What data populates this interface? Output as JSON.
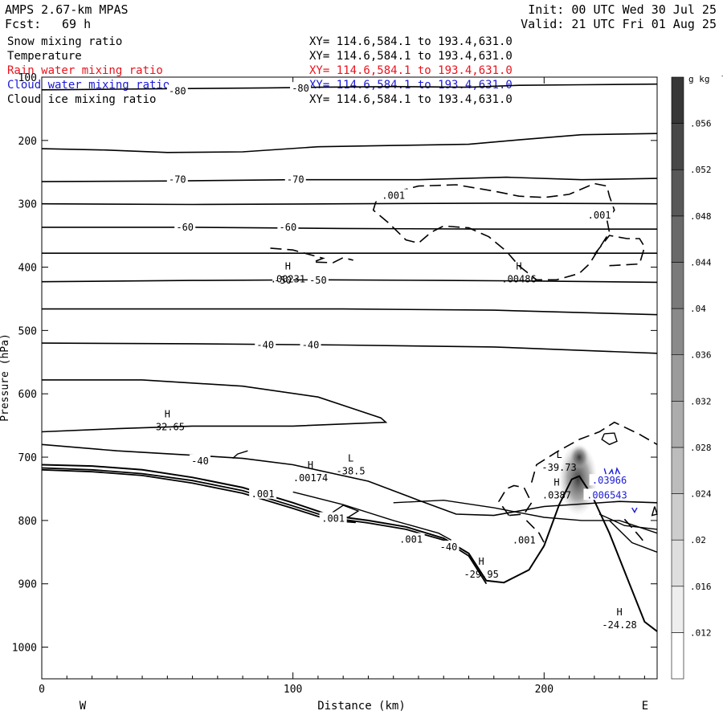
{
  "header": {
    "model": "AMPS 2.67-km MPAS",
    "fcst_label": "Fcst:",
    "fcst_value": "69 h",
    "init": "Init: 00 UTC Wed 30 Jul 25",
    "valid": "Valid: 21 UTC Fri 01 Aug 25"
  },
  "fields": [
    {
      "name": "Snow mixing ratio",
      "xy": "XY= 114.6,584.1 to 193.4,631.0",
      "color": "#000000"
    },
    {
      "name": "Temperature",
      "xy": "XY= 114.6,584.1 to 193.4,631.0",
      "color": "#000000"
    },
    {
      "name": "Rain water mixing ratio",
      "xy": "XY= 114.6,584.1 to 193.4,631.0",
      "color": "#e8141e"
    },
    {
      "name": "Cloud water mixing ratio",
      "xy": "XY= 114.6,584.1 to 193.4,631.0",
      "color": "#1a1ad8"
    },
    {
      "name": "Cloud ice mixing ratio",
      "xy": "XY= 114.6,584.1 to 193.4,631.0",
      "color": "#000000"
    }
  ],
  "chart_data": {
    "type": "cross-section contour",
    "xlabel": "Distance (km)",
    "ylabel": "Pressure (hPa)",
    "xlim": [
      0,
      245
    ],
    "ylim": [
      100,
      1050
    ],
    "y_log": false,
    "x_ticks": [
      0,
      100,
      200
    ],
    "y_ticks": [
      100,
      200,
      300,
      400,
      500,
      600,
      700,
      800,
      900,
      1000
    ],
    "direction_labels": {
      "left": "W",
      "right": "E"
    },
    "colorbar": {
      "unit": "g kg",
      "unit_exp": "-1",
      "levels": [
        ".012",
        ".016",
        ".02",
        ".024",
        ".028",
        ".032",
        ".036",
        ".04",
        ".044",
        ".048",
        ".052",
        ".056"
      ]
    },
    "temperature_contours": [
      {
        "level": -80,
        "points": [
          [
            0,
            120
          ],
          [
            30,
            119
          ],
          [
            60,
            118
          ],
          [
            90,
            117
          ],
          [
            110,
            116
          ],
          [
            140,
            115
          ],
          [
            170,
            116
          ],
          [
            190,
            113
          ],
          [
            215,
            112
          ],
          [
            245,
            111
          ]
        ]
      },
      {
        "level": -80,
        "points": [
          [
            0,
            213
          ],
          [
            25,
            215
          ],
          [
            50,
            219
          ],
          [
            80,
            218
          ],
          [
            110,
            210
          ],
          [
            140,
            208
          ],
          [
            170,
            206
          ],
          [
            190,
            199
          ],
          [
            215,
            191
          ],
          [
            245,
            189
          ]
        ]
      },
      {
        "level": -70,
        "points": [
          [
            0,
            265
          ],
          [
            50,
            264
          ],
          [
            100,
            262
          ],
          [
            150,
            262
          ],
          [
            185,
            258
          ],
          [
            215,
            262
          ],
          [
            245,
            260
          ]
        ]
      },
      {
        "level": -70,
        "points": [
          [
            0,
            300
          ],
          [
            60,
            301
          ],
          [
            120,
            300
          ],
          [
            180,
            299
          ],
          [
            245,
            300
          ]
        ]
      },
      {
        "level": -60,
        "points": [
          [
            0,
            337
          ],
          [
            60,
            337
          ],
          [
            120,
            339
          ],
          [
            180,
            340
          ],
          [
            245,
            340
          ]
        ]
      },
      {
        "level": -60,
        "points": [
          [
            0,
            378
          ],
          [
            80,
            378
          ],
          [
            160,
            378
          ],
          [
            245,
            378
          ]
        ]
      },
      {
        "level": -50,
        "points": [
          [
            0,
            423
          ],
          [
            60,
            421
          ],
          [
            110,
            420
          ],
          [
            160,
            421
          ],
          [
            200,
            422
          ],
          [
            245,
            424
          ]
        ]
      },
      {
        "level": -50,
        "points": [
          [
            0,
            466
          ],
          [
            60,
            466
          ],
          [
            120,
            466
          ],
          [
            180,
            468
          ],
          [
            245,
            475
          ]
        ]
      },
      {
        "level": -40,
        "points": [
          [
            0,
            520
          ],
          [
            60,
            521
          ],
          [
            120,
            523
          ],
          [
            180,
            526
          ],
          [
            245,
            536
          ]
        ]
      },
      {
        "level": -40,
        "points": [
          [
            0,
            578
          ],
          [
            40,
            578
          ],
          [
            80,
            588
          ],
          [
            110,
            605
          ],
          [
            135,
            638
          ],
          [
            137,
            645
          ],
          [
            100,
            651
          ],
          [
            60,
            651
          ],
          [
            30,
            655
          ],
          [
            0,
            660
          ]
        ]
      },
      {
        "level": -40,
        "points": [
          [
            0,
            680
          ],
          [
            30,
            690
          ],
          [
            60,
            697
          ],
          [
            80,
            702
          ],
          [
            100,
            712
          ],
          [
            130,
            738
          ],
          [
            150,
            768
          ],
          [
            165,
            790
          ],
          [
            180,
            792
          ],
          [
            200,
            778
          ],
          [
            230,
            770
          ],
          [
            245,
            772
          ]
        ]
      }
    ],
    "label_markers": [
      {
        "type": "H",
        "value": "-32.65",
        "x": 50,
        "p": 642
      },
      {
        "type": "L",
        "value": "-38.5",
        "x": 123,
        "p": 712
      },
      {
        "type": "H",
        "value": ".00174",
        "x": 107,
        "p": 723
      },
      {
        "type": "H",
        "value": ".00231",
        "x": 98,
        "p": 409
      },
      {
        "type": "H",
        "value": ".00486",
        "x": 190,
        "p": 409
      },
      {
        "type": "L",
        "value": "-39.73",
        "x": 206,
        "p": 706
      },
      {
        "type": "H",
        "value": ".0387",
        "x": 205,
        "p": 750
      },
      {
        "type": "H",
        "value": "-29.95",
        "x": 175,
        "p": 875
      },
      {
        "type": "H",
        "value": "-24.28",
        "x": 230,
        "p": 955
      }
    ],
    "contour_labels": [
      {
        "text": "-80",
        "x": 54,
        "p": 122,
        "color": "#000000"
      },
      {
        "text": "-80",
        "x": 103,
        "p": 118,
        "color": "#000000"
      },
      {
        "text": "-70",
        "x": 54,
        "p": 262,
        "color": "#000000"
      },
      {
        "text": "-70",
        "x": 101,
        "p": 262,
        "color": "#000000"
      },
      {
        "text": "-60",
        "x": 57,
        "p": 337,
        "color": "#000000"
      },
      {
        "text": "-60",
        "x": 98,
        "p": 337,
        "color": "#000000"
      },
      {
        "text": "-50",
        "x": 96,
        "p": 421,
        "color": "#000000"
      },
      {
        "text": "-50",
        "x": 110,
        "p": 421,
        "color": "#000000"
      },
      {
        "text": "-40",
        "x": 89,
        "p": 523,
        "color": "#000000"
      },
      {
        "text": "-40",
        "x": 107,
        "p": 523,
        "color": "#000000"
      },
      {
        "text": "-40",
        "x": 63,
        "p": 706,
        "color": "#000000"
      },
      {
        "text": "-40",
        "x": 162,
        "p": 842,
        "color": "#000000"
      },
      {
        "text": ".001",
        "x": 140,
        "p": 287,
        "color": "#000000"
      },
      {
        "text": ".001",
        "x": 222,
        "p": 318,
        "color": "#000000"
      },
      {
        "text": ".001",
        "x": 192,
        "p": 831,
        "color": "#000000"
      },
      {
        "text": ".001",
        "x": 116,
        "p": 797,
        "color": "#000000"
      },
      {
        "text": ".001",
        "x": 88,
        "p": 758,
        "color": "#000000"
      },
      {
        "text": ".001",
        "x": 147,
        "p": 830,
        "color": "#000000"
      },
      {
        "text": ".03966",
        "x": 226,
        "p": 737,
        "color": "#1a1ad8"
      },
      {
        "text": ".006543",
        "x": 225,
        "p": 760,
        "color": "#1a1ad8"
      }
    ]
  }
}
